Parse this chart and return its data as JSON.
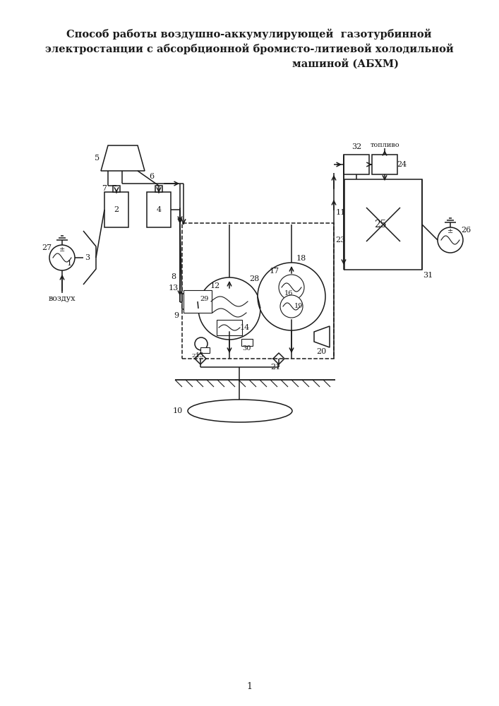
{
  "title_line1": "Способ работы воздушно-аккумулирующей  газотурбинной",
  "title_line2": "электростанции с абсорбционной бромисто-литиевой холодильной",
  "title_line3": "машиной (АБХМ)",
  "page_number": "1",
  "bg": "#ffffff",
  "lc": "#1a1a1a"
}
